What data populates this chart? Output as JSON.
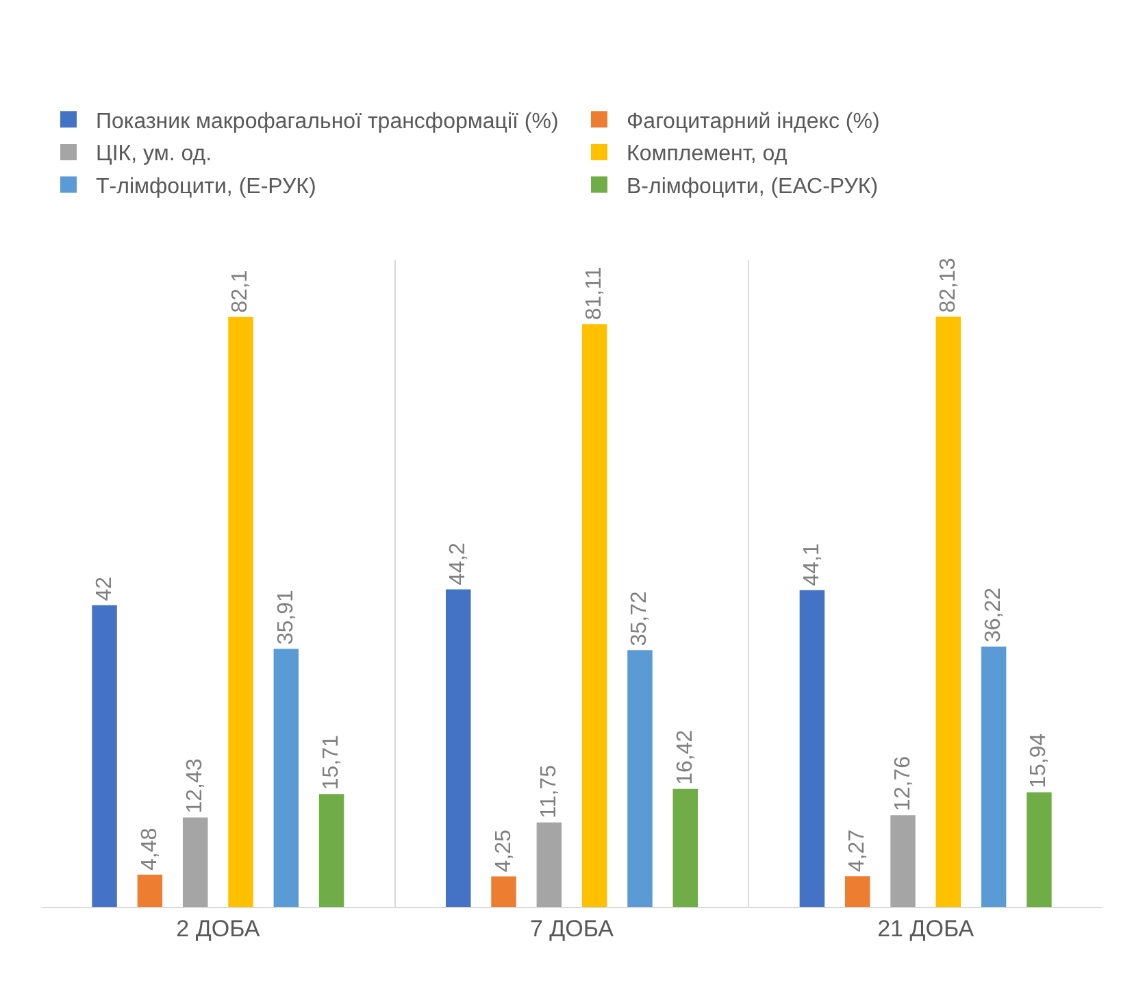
{
  "chart_data": {
    "type": "bar",
    "categories": [
      "2 ДОБА",
      "7 ДОБА",
      "21 ДОБА"
    ],
    "series": [
      {
        "name": "Показник макрофагальної трансформації (%)",
        "color": "#4472c4",
        "values": [
          42,
          44.2,
          44.1
        ],
        "value_labels": [
          "42",
          "44,2",
          "44,1"
        ]
      },
      {
        "name": "Фагоцитарний індекс (%)",
        "color": "#ed7d31",
        "values": [
          4.48,
          4.25,
          4.27
        ],
        "value_labels": [
          "4,48",
          "4,25",
          "4,27"
        ]
      },
      {
        "name": "ЦІК, ум. од.",
        "color": "#a5a5a5",
        "values": [
          12.43,
          11.75,
          12.76
        ],
        "value_labels": [
          "12,43",
          "11,75",
          "12,76"
        ]
      },
      {
        "name": "Комплемент, од",
        "color": "#ffc000",
        "values": [
          82.1,
          81.11,
          82.13
        ],
        "value_labels": [
          "82,1",
          "81,11",
          "82,13"
        ]
      },
      {
        "name": "Т-лімфоцити, (Е-РУК)",
        "color": "#5b9bd5",
        "values": [
          35.91,
          35.72,
          36.22
        ],
        "value_labels": [
          "35,91",
          "35,72",
          "36,22"
        ]
      },
      {
        "name": "В-лімфоцити, (ЕАС-РУК)",
        "color": "#70ad47",
        "values": [
          15.71,
          16.42,
          15.94
        ],
        "value_labels": [
          "15,71",
          "16,42",
          "15,94"
        ]
      }
    ],
    "ylim": [
      0,
      90
    ],
    "grid": "x",
    "legend": "top",
    "tick_labels": "x"
  }
}
